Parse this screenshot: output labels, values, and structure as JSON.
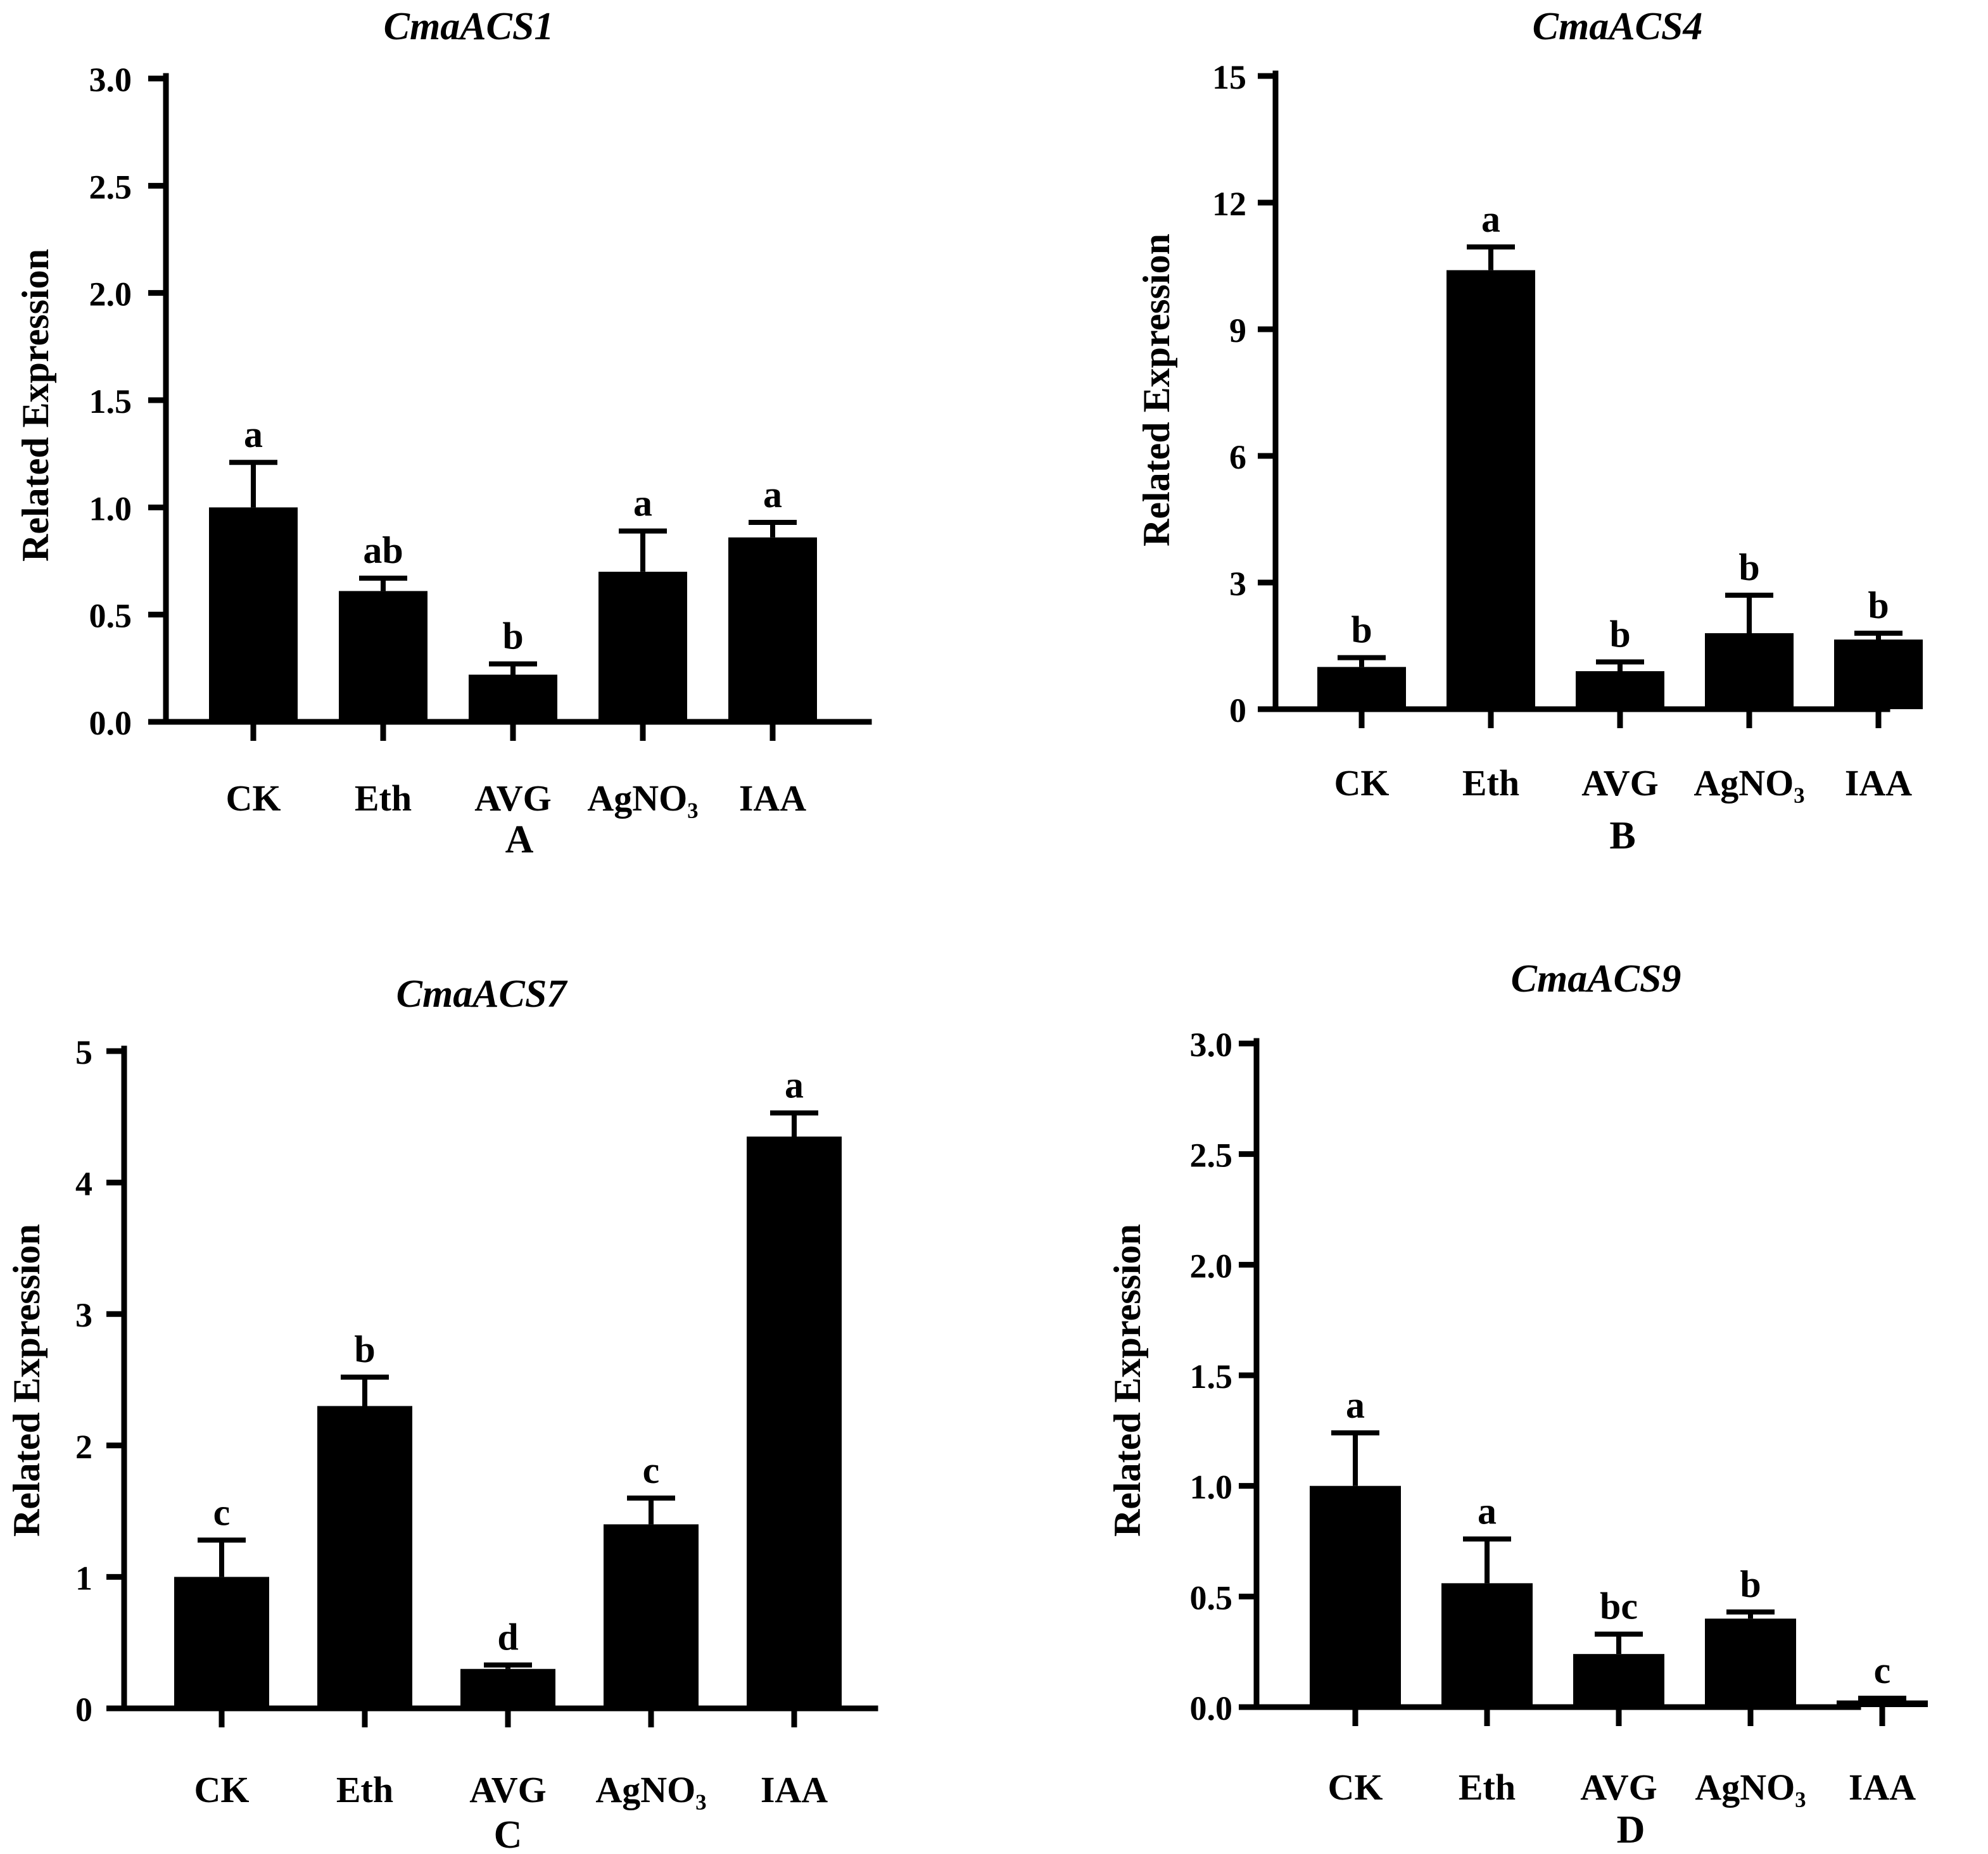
{
  "figure": {
    "background": "#ffffff",
    "bar_color": "#000000"
  },
  "chart_data": [
    {
      "type": "bar",
      "title": "CmaACS1",
      "panel": "A",
      "ylabel": "Related Expression",
      "xlabel": "",
      "categories": [
        "CK",
        "Eth",
        "AVG",
        "AgNO₃",
        "IAA"
      ],
      "values": [
        1.0,
        0.61,
        0.22,
        0.7,
        0.86
      ],
      "errors": [
        0.21,
        0.06,
        0.05,
        0.19,
        0.07
      ],
      "significance": [
        "a",
        "ab",
        "b",
        "a",
        "a"
      ],
      "ylim": [
        0,
        3.0
      ],
      "yticks": [
        0.0,
        0.5,
        1.0,
        1.5,
        2.0,
        2.5,
        3.0
      ],
      "ytick_labels": [
        "0.0",
        "0.5",
        "1.0",
        "1.5",
        "2.0",
        "2.5",
        "3.0"
      ],
      "grid": false
    },
    {
      "type": "bar",
      "title": "CmaACS4",
      "panel": "B",
      "ylabel": "Related Expression",
      "xlabel": "",
      "categories": [
        "CK",
        "Eth",
        "AVG",
        "AgNO₃",
        "IAA"
      ],
      "values": [
        1.0,
        10.4,
        0.9,
        1.8,
        1.65
      ],
      "errors": [
        0.22,
        0.55,
        0.22,
        0.9,
        0.15
      ],
      "significance": [
        "b",
        "a",
        "b",
        "b",
        "b"
      ],
      "ylim": [
        0,
        15
      ],
      "yticks": [
        0,
        3,
        6,
        9,
        12,
        15
      ],
      "ytick_labels": [
        "0",
        "3",
        "6",
        "9",
        "12",
        "15"
      ],
      "grid": false
    },
    {
      "type": "bar",
      "title": "CmaACS7",
      "panel": "C",
      "ylabel": "Related Expression",
      "xlabel": "",
      "categories": [
        "CK",
        "Eth",
        "AVG",
        "AgNO₃",
        "IAA"
      ],
      "values": [
        1.0,
        2.3,
        0.3,
        1.4,
        4.35
      ],
      "errors": [
        0.28,
        0.22,
        0.03,
        0.2,
        0.18
      ],
      "significance": [
        "c",
        "b",
        "d",
        "c",
        "a"
      ],
      "ylim": [
        0,
        5
      ],
      "yticks": [
        0,
        1,
        2,
        3,
        4,
        5
      ],
      "ytick_labels": [
        "0",
        "1",
        "2",
        "3",
        "4",
        "5"
      ],
      "grid": false
    },
    {
      "type": "bar",
      "title": "CmaACS9",
      "panel": "D",
      "ylabel": "Related Expression",
      "xlabel": "",
      "categories": [
        "CK",
        "Eth",
        "AVG",
        "AgNO₃",
        "IAA"
      ],
      "values": [
        1.0,
        0.56,
        0.24,
        0.4,
        0.03
      ],
      "errors": [
        0.24,
        0.2,
        0.09,
        0.03,
        0.01
      ],
      "significance": [
        "a",
        "a",
        "bc",
        "b",
        "c"
      ],
      "ylim": [
        0,
        3.0
      ],
      "yticks": [
        0.0,
        0.5,
        1.0,
        1.5,
        2.0,
        2.5,
        3.0
      ],
      "ytick_labels": [
        "0.0",
        "0.5",
        "1.0",
        "1.5",
        "2.0",
        "2.5",
        "3.0"
      ],
      "grid": false
    }
  ]
}
